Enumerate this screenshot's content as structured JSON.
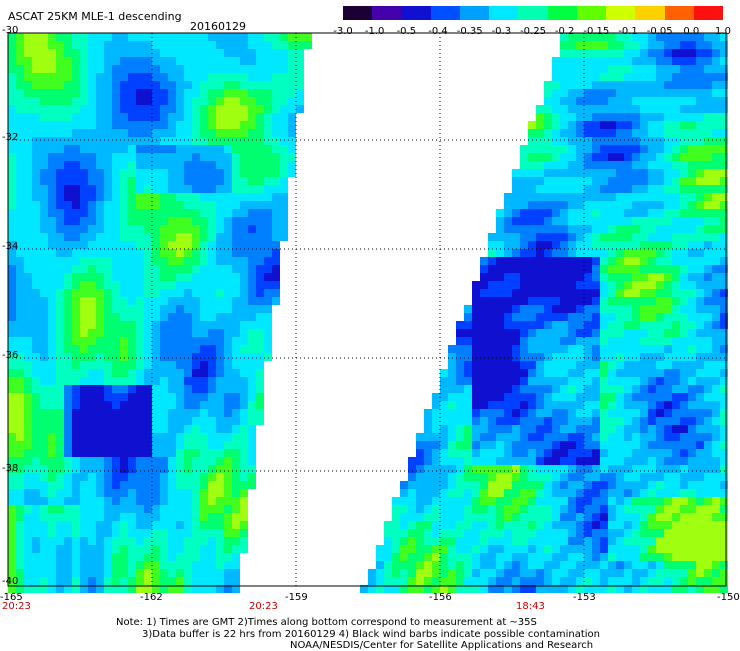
{
  "header": {
    "title": "ASCAT 25KM MLE-1 descending",
    "date": "20160129"
  },
  "colorbar": {
    "ticks": [
      "-3.0",
      "-1.0",
      "-0.5",
      "-0.4",
      "-0.35",
      "-0.3",
      "-0.25",
      "-0.2",
      "-0.15",
      "-0.1",
      "-0.05",
      "0.0",
      "1.0"
    ],
    "colors": [
      "#1a0033",
      "#4400aa",
      "#1010d0",
      "#0050ff",
      "#00a0ff",
      "#00e8ff",
      "#00ffb0",
      "#00ff40",
      "#60ff00",
      "#d0ff00",
      "#ffd000",
      "#ff6000",
      "#ff1010"
    ]
  },
  "map": {
    "lat_labels": [
      "-30",
      "-32",
      "-34",
      "-36",
      "-38",
      "-40"
    ],
    "lon_labels": [
      "-165",
      "-162",
      "-159",
      "-156",
      "-153",
      "-150"
    ],
    "time_labels": [
      "20:23",
      "20:23",
      "18:43"
    ]
  },
  "notes": {
    "line1": "Note: 1) Times are GMT 2)Times along bottom correspond to measurement at ~35S",
    "line2": "3)Data buffer is 22 hrs from 20160129 4) Black wind barbs indicate possible contamination",
    "line3": "NOAA/NESDIS/Center for Satellite Applications and Research"
  }
}
